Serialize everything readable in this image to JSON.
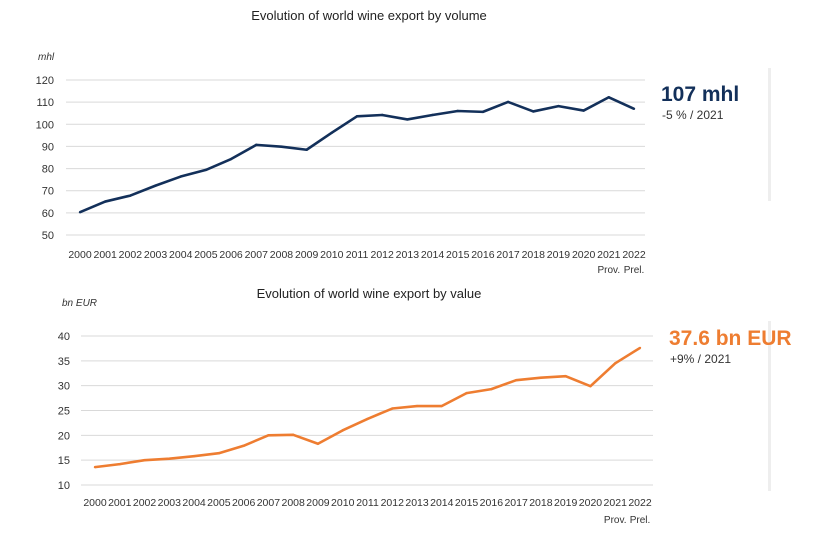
{
  "chart_data": [
    {
      "type": "line",
      "title": "Evolution of world wine export by volume",
      "ylabel": "mhl",
      "ylim": [
        50,
        120
      ],
      "yticks": [
        50,
        60,
        70,
        80,
        90,
        100,
        110,
        120
      ],
      "grid": true,
      "categories": [
        "2000",
        "2001",
        "2002",
        "2003",
        "2004",
        "2005",
        "2006",
        "2007",
        "2008",
        "2009",
        "2010",
        "2011",
        "2012",
        "2013",
        "2014",
        "2015",
        "2016",
        "2017",
        "2018",
        "2019",
        "2020",
        "2021",
        "2022"
      ],
      "x_notes": [
        {
          "category": "2021",
          "text": "Prov."
        },
        {
          "category": "2022",
          "text": "Prel."
        }
      ],
      "series": [
        {
          "values": [
            60.3,
            65.1,
            67.8,
            72.3,
            76.4,
            79.4,
            84.3,
            90.7,
            89.9,
            88.5,
            96.2,
            103.6,
            104.2,
            102.2,
            104.2,
            106.0,
            105.6,
            110.1,
            105.8,
            108.2,
            106.2,
            112.2,
            107.0
          ],
          "color": "#13305a"
        }
      ],
      "callout": {
        "value": "107 mhl",
        "change": "-5 % / 2021",
        "color": "#13305a"
      }
    },
    {
      "type": "line",
      "title": "Evolution of world wine export by value",
      "ylabel": "bn EUR",
      "ylim": [
        10,
        40
      ],
      "yticks": [
        10,
        15,
        20,
        25,
        30,
        35,
        40
      ],
      "grid": true,
      "categories": [
        "2000",
        "2001",
        "2002",
        "2003",
        "2004",
        "2005",
        "2006",
        "2007",
        "2008",
        "2009",
        "2010",
        "2011",
        "2012",
        "2013",
        "2014",
        "2015",
        "2016",
        "2017",
        "2018",
        "2019",
        "2020",
        "2021",
        "2022"
      ],
      "x_notes": [
        {
          "category": "2021",
          "text": "Prov."
        },
        {
          "category": "2022",
          "text": "Prel."
        }
      ],
      "series": [
        {
          "values": [
            13.6,
            14.2,
            15.0,
            15.3,
            15.8,
            16.4,
            17.9,
            20.0,
            20.1,
            18.3,
            21.0,
            23.3,
            25.4,
            25.9,
            25.9,
            28.5,
            29.3,
            31.1,
            31.6,
            31.9,
            29.9,
            34.5,
            37.6
          ],
          "color": "#ee7d31"
        }
      ],
      "callout": {
        "value": "37.6 bn EUR",
        "change": "+9% / 2021",
        "color": "#ee7d31"
      }
    }
  ]
}
